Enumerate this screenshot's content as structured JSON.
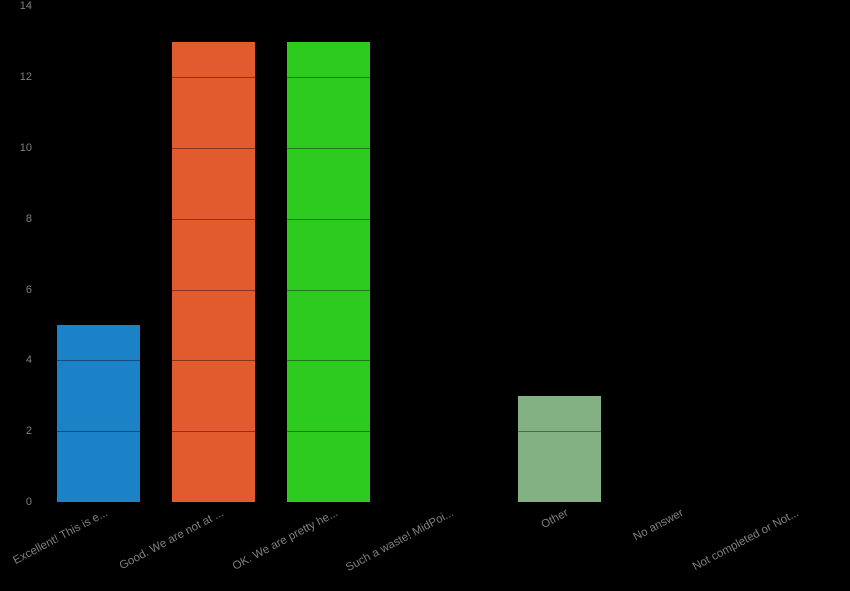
{
  "chart_data": {
    "type": "bar",
    "categories": [
      "Excellent! This is e...",
      "Good. We are not at ...",
      "OK. We are pretty he...",
      "Such a waste! MidPoi...",
      "Other",
      "No answer",
      "Not completed or Not..."
    ],
    "values": [
      5,
      13,
      13,
      0,
      3,
      0,
      0
    ],
    "bar_colors": [
      "#1c82c8",
      "#e25b2e",
      "#2dcb1f",
      null,
      "#84b183",
      null,
      null
    ],
    "title": "",
    "xlabel": "",
    "ylabel": "",
    "ylim": [
      0,
      14
    ],
    "yticks": [
      0,
      2,
      4,
      6,
      8,
      10,
      12,
      14
    ],
    "x_tick_rotation_deg": -28,
    "grid": true,
    "legend": "none",
    "background_color": "#000000",
    "tick_label_color": "#7f7f7f",
    "gridline_color": "rgba(0,0,0,0.4)"
  }
}
